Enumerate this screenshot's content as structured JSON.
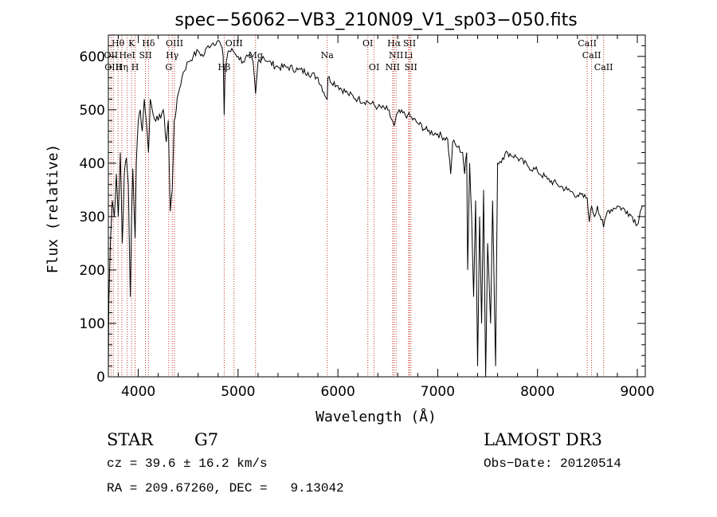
{
  "chart_data": {
    "type": "line",
    "title": "spec−56062−VB3_210N09_V1_sp03−050.fits",
    "xlabel": "Wavelength (Å)",
    "ylabel": "Flux (relative)",
    "xlim": [
      3700,
      9080
    ],
    "ylim": [
      0,
      640
    ],
    "x_ticks": [
      4000,
      5000,
      6000,
      7000,
      8000,
      9000
    ],
    "y_ticks": [
      0,
      100,
      200,
      300,
      400,
      500,
      600
    ],
    "series": [
      {
        "name": "spectrum",
        "x": [
          3700,
          3705,
          3720,
          3740,
          3760,
          3780,
          3800,
          3820,
          3840,
          3860,
          3880,
          3900,
          3920,
          3933,
          3945,
          3968,
          3980,
          4000,
          4020,
          4040,
          4060,
          4080,
          4102,
          4120,
          4150,
          4200,
          4250,
          4280,
          4300,
          4320,
          4340,
          4360,
          4380,
          4400,
          4450,
          4500,
          4550,
          4600,
          4650,
          4700,
          4750,
          4800,
          4830,
          4850,
          4861,
          4870,
          4900,
          4950,
          5000,
          5050,
          5100,
          5150,
          5175,
          5200,
          5250,
          5300,
          5400,
          5500,
          5600,
          5700,
          5800,
          5893,
          5900,
          6000,
          6100,
          6200,
          6300,
          6400,
          6500,
          6563,
          6575,
          6600,
          6700,
          6800,
          6900,
          7000,
          7100,
          7130,
          7150,
          7200,
          7250,
          7270,
          7290,
          7300,
          7320,
          7340,
          7360,
          7380,
          7400,
          7420,
          7440,
          7460,
          7480,
          7500,
          7530,
          7550,
          7580,
          7600,
          7650,
          7700,
          7800,
          7900,
          8000,
          8100,
          8200,
          8300,
          8400,
          8498,
          8520,
          8542,
          8570,
          8600,
          8662,
          8700,
          8800,
          8900,
          8950,
          9000,
          9030,
          9050
        ],
        "values": [
          0,
          140,
          250,
          330,
          300,
          380,
          300,
          420,
          250,
          380,
          410,
          360,
          150,
          300,
          390,
          260,
          400,
          480,
          500,
          460,
          520,
          480,
          420,
          520,
          490,
          480,
          500,
          440,
          480,
          310,
          350,
          480,
          500,
          530,
          570,
          590,
          600,
          610,
          600,
          620,
          625,
          630,
          620,
          600,
          490,
          580,
          610,
          610,
          600,
          590,
          600,
          590,
          530,
          590,
          600,
          590,
          580,
          580,
          575,
          570,
          560,
          520,
          560,
          545,
          530,
          520,
          515,
          505,
          500,
          470,
          480,
          495,
          490,
          475,
          460,
          455,
          445,
          380,
          440,
          430,
          420,
          380,
          420,
          200,
          400,
          300,
          150,
          330,
          20,
          300,
          100,
          350,
          0,
          250,
          100,
          330,
          20,
          400,
          410,
          420,
          410,
          395,
          385,
          370,
          360,
          350,
          340,
          335,
          290,
          320,
          300,
          320,
          280,
          310,
          320,
          310,
          300,
          285,
          310,
          320
        ]
      }
    ],
    "line_markers": [
      {
        "label": "Hθ",
        "wavelength": 3797,
        "row": 1
      },
      {
        "label": "K",
        "wavelength": 3933,
        "row": 1
      },
      {
        "label": "Hδ",
        "wavelength": 4102,
        "row": 1
      },
      {
        "label": "OIII",
        "wavelength": 4363,
        "row": 1
      },
      {
        "label": "OIII",
        "wavelength": 4959,
        "row": 1
      },
      {
        "label": "OI",
        "wavelength": 6300,
        "row": 1
      },
      {
        "label": "Hα",
        "wavelength": 6563,
        "row": 1
      },
      {
        "label": "SII",
        "wavelength": 6717,
        "row": 1
      },
      {
        "label": "CaII",
        "wavelength": 8498,
        "row": 1
      },
      {
        "label": "OII",
        "wavelength": 3727,
        "row": 2
      },
      {
        "label": "HeI",
        "wavelength": 3889,
        "row": 2
      },
      {
        "label": "SII",
        "wavelength": 4072,
        "row": 2
      },
      {
        "label": "Hγ",
        "wavelength": 4340,
        "row": 2
      },
      {
        "label": "Mg",
        "wavelength": 5175,
        "row": 2
      },
      {
        "label": "Na",
        "wavelength": 5893,
        "row": 2
      },
      {
        "label": "NII",
        "wavelength": 6583,
        "row": 2
      },
      {
        "label": "Li",
        "wavelength": 6708,
        "row": 2
      },
      {
        "label": "CaII",
        "wavelength": 8542,
        "row": 2
      },
      {
        "label": "OIII",
        "wavelength": 3750,
        "row": 3
      },
      {
        "label": "Hη",
        "wavelength": 3835,
        "row": 3
      },
      {
        "label": "H",
        "wavelength": 3968,
        "row": 3
      },
      {
        "label": "G",
        "wavelength": 4305,
        "row": 3
      },
      {
        "label": "Hβ",
        "wavelength": 4861,
        "row": 3
      },
      {
        "label": "OI",
        "wavelength": 6363,
        "row": 3
      },
      {
        "label": "NII",
        "wavelength": 6548,
        "row": 3
      },
      {
        "label": "SII",
        "wavelength": 6731,
        "row": 3
      },
      {
        "label": "CaII",
        "wavelength": 8662,
        "row": 3
      }
    ]
  },
  "info": {
    "class_label": "STAR",
    "subclass": "G7",
    "survey": "LAMOST DR3",
    "cz": "cz = 39.6 ± 16.2 km/s",
    "obs_date": "Obs−Date: 20120514",
    "coords": "RA = 209.67260, DEC =   9.13042"
  }
}
